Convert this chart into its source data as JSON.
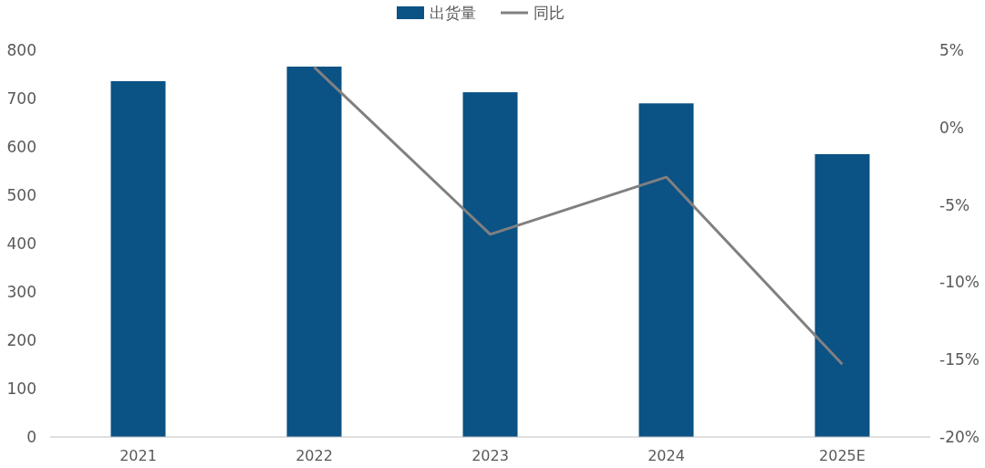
{
  "chart_data": {
    "type": "bar",
    "categories": [
      "2021",
      "2022",
      "2023",
      "2024",
      "2025E"
    ],
    "series": [
      {
        "name": "出货量",
        "color": "#0b5285",
        "values": [
          736,
          766,
          713,
          690,
          585
        ]
      },
      {
        "name": "同比",
        "type": "line",
        "axis": "y2",
        "color": "#808080",
        "values": [
          null,
          3.9,
          -6.9,
          -3.2,
          -15.3
        ]
      }
    ],
    "ylim": [
      0,
      800
    ],
    "yticks": [
      0,
      100,
      200,
      300,
      400,
      500,
      600,
      700,
      800
    ],
    "y2lim": [
      -20,
      5
    ],
    "y2ticks": [
      {
        "value": 5,
        "label": "5%"
      },
      {
        "value": 0,
        "label": "0%"
      },
      {
        "value": -5,
        "label": "-5%"
      },
      {
        "value": -10,
        "label": "-10%"
      },
      {
        "value": -15,
        "label": "-15%"
      },
      {
        "value": -20,
        "label": "-20%"
      }
    ],
    "legend": "top",
    "grid": false
  }
}
